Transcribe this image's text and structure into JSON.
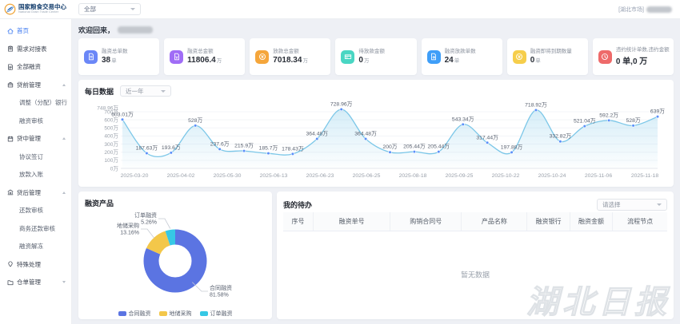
{
  "header": {
    "brand": {
      "title": "国家粮食交易中心",
      "subtitle": "National Grain Trade Center"
    },
    "market_filter": {
      "value": "全部"
    },
    "user_area": {
      "market_tag": "[湖北市场]"
    }
  },
  "sidebar": {
    "items": [
      {
        "label": "首页",
        "icon": "home-icon",
        "active": true
      },
      {
        "label": "需求对接表",
        "icon": "clipboard-icon"
      },
      {
        "label": "全部融资",
        "icon": "doc-icon"
      },
      {
        "label": "贷前管理",
        "icon": "briefcase-icon",
        "group": true,
        "expanded": true
      },
      {
        "label": "调整（分配）银行",
        "child": true
      },
      {
        "label": "融资审核",
        "child": true
      },
      {
        "label": "贷中管理",
        "icon": "calendar-icon",
        "group": true,
        "expanded": true
      },
      {
        "label": "协议签订",
        "child": true
      },
      {
        "label": "放款入账",
        "child": true
      },
      {
        "label": "贷后管理",
        "icon": "bank-icon",
        "group": true,
        "expanded": true
      },
      {
        "label": "还款审核",
        "child": true
      },
      {
        "label": "商务还款审核",
        "child": true
      },
      {
        "label": "融资解冻",
        "child": true
      },
      {
        "label": "特殊处理",
        "icon": "pin-icon"
      },
      {
        "label": "仓单管理",
        "icon": "folder-icon",
        "group": true,
        "expanded": false
      }
    ]
  },
  "welcome": {
    "text": "欢迎回来，"
  },
  "stat_cards": [
    {
      "label": "融资总单数",
      "value": "38",
      "unit": "单",
      "icon": "file-icon",
      "color": "#6b87f7"
    },
    {
      "label": "融资总金额",
      "value": "11806.4",
      "unit": "万",
      "icon": "money-file-icon",
      "color": "#a06df6"
    },
    {
      "label": "放款总金额",
      "value": "7018.34",
      "unit": "万",
      "icon": "coin-icon",
      "color": "#f5a63b"
    },
    {
      "label": "待放款金额",
      "value": "0",
      "unit": "万",
      "icon": "card-icon",
      "color": "#49d6c3"
    },
    {
      "label": "融资放款单数",
      "value": "24",
      "unit": "单",
      "icon": "file-out-icon",
      "color": "#3f9ef8"
    },
    {
      "label": "融资即将到期数量",
      "value": "0",
      "unit": "单",
      "icon": "coin-icon",
      "color": "#f6ce4b"
    },
    {
      "label": "违约统计单数,违约金额",
      "value": "0 单,0 万",
      "unit": "",
      "icon": "clock-icon",
      "color": "#ee6a6a"
    }
  ],
  "daily_panel": {
    "title": "每日数据",
    "range_value": "近一年"
  },
  "chart_data": [
    {
      "type": "line",
      "title": "每日数据",
      "unit": "万",
      "values": [
        603.01,
        187.63,
        193.6,
        528,
        237.6,
        215.9,
        185.7,
        178.43,
        364.48,
        728.96,
        364.48,
        200,
        205.44,
        205.44,
        543.34,
        317.44,
        197.88,
        718.92,
        332.82,
        521.04,
        592.2,
        528,
        639
      ],
      "point_labels": [
        "603.01万",
        "187.63万",
        "193.6万",
        "528万",
        "237.6万",
        "215.9万",
        "185.7万",
        "178.43万",
        "364.48万",
        "728.96万",
        "364.48万",
        "200万",
        "205.44万",
        "205.44万",
        "543.34万",
        "317.44万",
        "197.88万",
        "718.92万",
        "332.82万",
        "521.04万",
        "592.2万",
        "528万",
        "639万"
      ],
      "x_tick_labels": [
        "2025-03-20",
        "2025-04-02",
        "2025-05-30",
        "2025-06-13",
        "2025-06-23",
        "2025-06-25",
        "2025-08-18",
        "2025-09-25",
        "2025-10-22",
        "2025-10-24",
        "2025-11-06",
        "2025-11-18"
      ],
      "y_ticks": [
        {
          "v": 748.96,
          "label": "748.96万"
        },
        {
          "v": 700,
          "label": "700万"
        },
        {
          "v": 600,
          "label": "600万"
        },
        {
          "v": 500,
          "label": "500万"
        },
        {
          "v": 400,
          "label": "400万"
        },
        {
          "v": 300,
          "label": "300万"
        },
        {
          "v": 200,
          "label": "200万"
        },
        {
          "v": 100,
          "label": "100万"
        },
        {
          "v": 0,
          "label": "0万"
        }
      ],
      "ylim": [
        0,
        748.96
      ],
      "grid": false,
      "line_color": "#7cc7e8",
      "point_color": "#5b8ff9"
    },
    {
      "type": "pie",
      "title": "融资产品",
      "slices": [
        {
          "name": "合同融资",
          "pct": 81.58,
          "label": "81.58%",
          "color": "#5b74e2"
        },
        {
          "name": "地储采购",
          "pct": 13.16,
          "label": "13.16%",
          "color": "#f3c74a"
        },
        {
          "name": "订单融资",
          "pct": 5.26,
          "label": "5.26%",
          "color": "#36c8e5"
        }
      ],
      "legend": [
        "合同融资",
        "地储采购",
        "订单融资"
      ],
      "legend_position": "bottom"
    }
  ],
  "product_panel": {
    "title": "融资产品"
  },
  "todo_panel": {
    "title": "我的待办",
    "filter_value": "请选择",
    "columns": [
      "序号",
      "融资单号",
      "购销合同号",
      "产品名称",
      "融资银行",
      "融资金额",
      "流程节点"
    ],
    "empty_text": "暂无数据"
  },
  "watermark": {
    "text": "湖北日报"
  }
}
